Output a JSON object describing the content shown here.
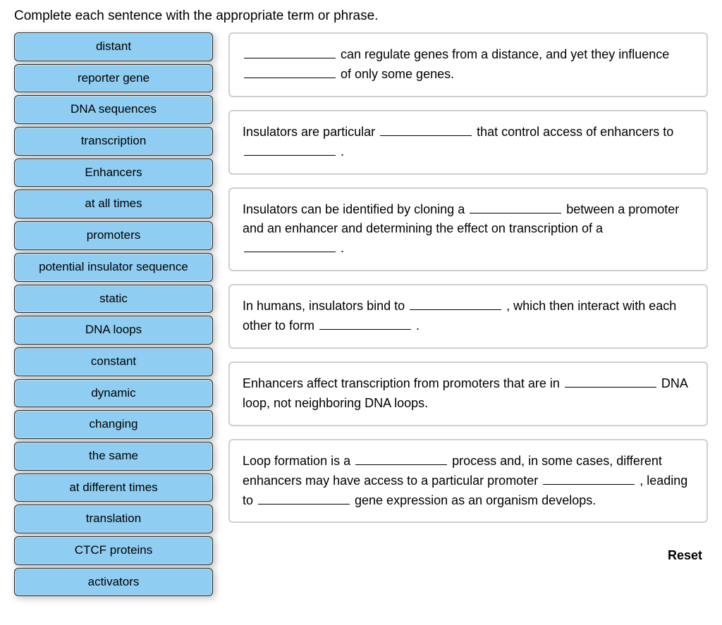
{
  "instruction": "Complete each sentence with the appropriate term or phrase.",
  "word_bank": [
    "distant",
    "reporter gene",
    "DNA sequences",
    "transcription",
    "Enhancers",
    "at all times",
    "promoters",
    "potential insulator sequence",
    "static",
    "DNA loops",
    "constant",
    "dynamic",
    "changing",
    "the same",
    "at different times",
    "translation",
    "CTCF proteins",
    "activators"
  ],
  "sentences": {
    "s1_a": " can regulate genes from a distance, and yet they influence ",
    "s1_b": " of only some genes.",
    "s2_a": "Insulators are particular ",
    "s2_b": " that control access of enhancers to ",
    "s2_c": " .",
    "s3_a": "Insulators can be identified by cloning a ",
    "s3_b": " between a promoter and an enhancer and determining the effect on transcription of a ",
    "s3_c": " .",
    "s4_a": "In humans, insulators bind to ",
    "s4_b": " , which then interact with each other to form ",
    "s4_c": " .",
    "s5_a": "Enhancers affect transcription from promoters that are in ",
    "s5_b": " DNA loop, not neighboring DNA loops.",
    "s6_a": "Loop formation is a ",
    "s6_b": " process and, in some cases, different enhancers may have access to a particular promoter ",
    "s6_c": " , leading to ",
    "s6_d": " gene expression as an organism develops."
  },
  "reset_label": "Reset",
  "colors": {
    "tile_bg": "#8fcef2",
    "box_border": "#cfcfcf"
  }
}
